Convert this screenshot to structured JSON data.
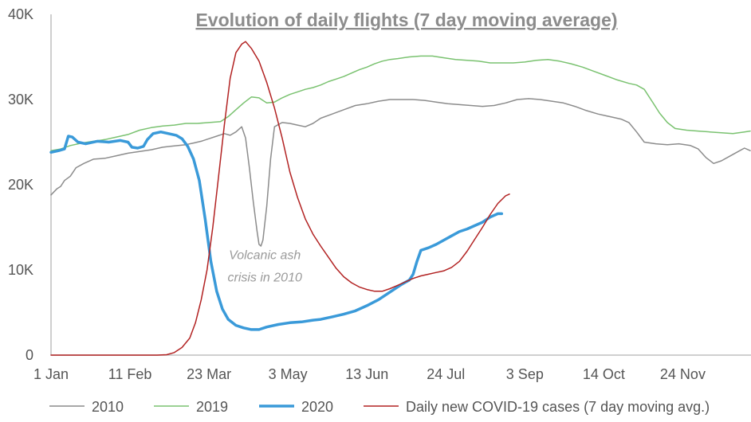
{
  "chart_data": {
    "type": "line",
    "title": "Evolution of daily flights (7 day moving average)",
    "xlabel": "",
    "ylabel": "",
    "ylim": [
      0,
      40000
    ],
    "y_ticks": [
      {
        "value": 0,
        "label": "0"
      },
      {
        "value": 10000,
        "label": "10K"
      },
      {
        "value": 20000,
        "label": "20K"
      },
      {
        "value": 30000,
        "label": "30K"
      },
      {
        "value": 40000,
        "label": "40K"
      }
    ],
    "x_ticks": [
      {
        "day": 0,
        "label": "1 Jan"
      },
      {
        "day": 41,
        "label": "11 Feb"
      },
      {
        "day": 82,
        "label": "23 Mar"
      },
      {
        "day": 123,
        "label": "3 May"
      },
      {
        "day": 164,
        "label": "13 Jun"
      },
      {
        "day": 205,
        "label": "24 Jul"
      },
      {
        "day": 246,
        "label": "3 Sep"
      },
      {
        "day": 287,
        "label": "14 Oct"
      },
      {
        "day": 328,
        "label": "24 Nov"
      }
    ],
    "xlim": [
      0,
      363
    ],
    "grid": false,
    "legend_position": "bottom",
    "series": [
      {
        "name": "2010",
        "color": "#8c8c8c",
        "width": 1.5,
        "points": [
          [
            0,
            18800
          ],
          [
            3,
            19500
          ],
          [
            5,
            19800
          ],
          [
            7,
            20500
          ],
          [
            10,
            21000
          ],
          [
            13,
            22000
          ],
          [
            17,
            22500
          ],
          [
            22,
            23000
          ],
          [
            28,
            23100
          ],
          [
            34,
            23400
          ],
          [
            40,
            23700
          ],
          [
            46,
            23900
          ],
          [
            52,
            24100
          ],
          [
            58,
            24400
          ],
          [
            62,
            24500
          ],
          [
            66,
            24600
          ],
          [
            70,
            24700
          ],
          [
            74,
            24900
          ],
          [
            78,
            25100
          ],
          [
            82,
            25400
          ],
          [
            86,
            25700
          ],
          [
            90,
            26000
          ],
          [
            93,
            25800
          ],
          [
            96,
            26200
          ],
          [
            99,
            26800
          ],
          [
            101,
            25500
          ],
          [
            103,
            22000
          ],
          [
            105,
            18000
          ],
          [
            107,
            14500
          ],
          [
            108,
            13000
          ],
          [
            109,
            12800
          ],
          [
            110,
            13500
          ],
          [
            112,
            17500
          ],
          [
            114,
            23000
          ],
          [
            116,
            26800
          ],
          [
            120,
            27300
          ],
          [
            124,
            27200
          ],
          [
            128,
            27000
          ],
          [
            132,
            26800
          ],
          [
            136,
            27200
          ],
          [
            140,
            27800
          ],
          [
            146,
            28300
          ],
          [
            152,
            28800
          ],
          [
            158,
            29300
          ],
          [
            164,
            29500
          ],
          [
            170,
            29800
          ],
          [
            176,
            30000
          ],
          [
            182,
            30000
          ],
          [
            188,
            30000
          ],
          [
            194,
            29900
          ],
          [
            200,
            29700
          ],
          [
            206,
            29500
          ],
          [
            212,
            29400
          ],
          [
            218,
            29300
          ],
          [
            224,
            29200
          ],
          [
            230,
            29300
          ],
          [
            236,
            29600
          ],
          [
            242,
            30000
          ],
          [
            248,
            30100
          ],
          [
            254,
            30000
          ],
          [
            260,
            29800
          ],
          [
            266,
            29600
          ],
          [
            272,
            29200
          ],
          [
            278,
            28700
          ],
          [
            284,
            28300
          ],
          [
            290,
            28000
          ],
          [
            296,
            27700
          ],
          [
            300,
            27300
          ],
          [
            304,
            26200
          ],
          [
            308,
            25000
          ],
          [
            314,
            24800
          ],
          [
            320,
            24700
          ],
          [
            326,
            24800
          ],
          [
            332,
            24600
          ],
          [
            336,
            24200
          ],
          [
            340,
            23200
          ],
          [
            344,
            22500
          ],
          [
            348,
            22800
          ],
          [
            352,
            23300
          ],
          [
            356,
            23800
          ],
          [
            360,
            24300
          ],
          [
            363,
            24000
          ]
        ]
      },
      {
        "name": "2019",
        "color": "#7ac270",
        "width": 1.5,
        "points": [
          [
            0,
            24000
          ],
          [
            5,
            24200
          ],
          [
            10,
            24600
          ],
          [
            16,
            24900
          ],
          [
            22,
            25100
          ],
          [
            28,
            25300
          ],
          [
            34,
            25600
          ],
          [
            40,
            25900
          ],
          [
            46,
            26400
          ],
          [
            52,
            26700
          ],
          [
            58,
            26900
          ],
          [
            64,
            27000
          ],
          [
            70,
            27200
          ],
          [
            76,
            27200
          ],
          [
            82,
            27300
          ],
          [
            88,
            27400
          ],
          [
            92,
            28000
          ],
          [
            96,
            28800
          ],
          [
            100,
            29600
          ],
          [
            104,
            30300
          ],
          [
            108,
            30200
          ],
          [
            112,
            29600
          ],
          [
            116,
            29700
          ],
          [
            120,
            30200
          ],
          [
            124,
            30600
          ],
          [
            128,
            30900
          ],
          [
            132,
            31200
          ],
          [
            136,
            31400
          ],
          [
            140,
            31700
          ],
          [
            144,
            32100
          ],
          [
            148,
            32400
          ],
          [
            152,
            32700
          ],
          [
            156,
            33100
          ],
          [
            160,
            33500
          ],
          [
            164,
            33800
          ],
          [
            168,
            34200
          ],
          [
            172,
            34500
          ],
          [
            176,
            34700
          ],
          [
            180,
            34800
          ],
          [
            186,
            35000
          ],
          [
            192,
            35100
          ],
          [
            198,
            35100
          ],
          [
            204,
            34900
          ],
          [
            210,
            34700
          ],
          [
            216,
            34600
          ],
          [
            222,
            34500
          ],
          [
            228,
            34300
          ],
          [
            234,
            34300
          ],
          [
            240,
            34300
          ],
          [
            246,
            34400
          ],
          [
            252,
            34600
          ],
          [
            258,
            34700
          ],
          [
            264,
            34500
          ],
          [
            270,
            34200
          ],
          [
            276,
            33800
          ],
          [
            282,
            33300
          ],
          [
            288,
            32800
          ],
          [
            294,
            32300
          ],
          [
            300,
            31900
          ],
          [
            304,
            31700
          ],
          [
            308,
            31200
          ],
          [
            312,
            29800
          ],
          [
            316,
            28400
          ],
          [
            320,
            27300
          ],
          [
            324,
            26600
          ],
          [
            330,
            26400
          ],
          [
            336,
            26300
          ],
          [
            342,
            26200
          ],
          [
            348,
            26100
          ],
          [
            354,
            26000
          ],
          [
            360,
            26200
          ],
          [
            363,
            26300
          ]
        ]
      },
      {
        "name": "2020",
        "color": "#3a9ad9",
        "width": 3.5,
        "points": [
          [
            0,
            23800
          ],
          [
            4,
            24000
          ],
          [
            7,
            24200
          ],
          [
            9,
            25700
          ],
          [
            11,
            25600
          ],
          [
            14,
            25000
          ],
          [
            18,
            24800
          ],
          [
            24,
            25100
          ],
          [
            30,
            25000
          ],
          [
            36,
            25200
          ],
          [
            40,
            25000
          ],
          [
            42,
            24400
          ],
          [
            45,
            24300
          ],
          [
            48,
            24500
          ],
          [
            50,
            25300
          ],
          [
            53,
            26000
          ],
          [
            57,
            26200
          ],
          [
            61,
            26000
          ],
          [
            65,
            25800
          ],
          [
            68,
            25400
          ],
          [
            71,
            24500
          ],
          [
            74,
            23000
          ],
          [
            77,
            20500
          ],
          [
            80,
            16000
          ],
          [
            83,
            11000
          ],
          [
            86,
            7500
          ],
          [
            89,
            5400
          ],
          [
            92,
            4200
          ],
          [
            96,
            3500
          ],
          [
            100,
            3200
          ],
          [
            104,
            3000
          ],
          [
            108,
            3000
          ],
          [
            112,
            3300
          ],
          [
            118,
            3600
          ],
          [
            124,
            3800
          ],
          [
            130,
            3900
          ],
          [
            136,
            4100
          ],
          [
            140,
            4200
          ],
          [
            146,
            4500
          ],
          [
            152,
            4800
          ],
          [
            158,
            5200
          ],
          [
            164,
            5800
          ],
          [
            170,
            6500
          ],
          [
            176,
            7400
          ],
          [
            182,
            8300
          ],
          [
            186,
            8800
          ],
          [
            188,
            9500
          ],
          [
            190,
            11000
          ],
          [
            192,
            12300
          ],
          [
            196,
            12600
          ],
          [
            200,
            13000
          ],
          [
            204,
            13500
          ],
          [
            208,
            14000
          ],
          [
            212,
            14500
          ],
          [
            216,
            14800
          ],
          [
            220,
            15200
          ],
          [
            224,
            15600
          ],
          [
            228,
            16200
          ],
          [
            232,
            16600
          ],
          [
            234,
            16600
          ]
        ]
      },
      {
        "name": "Daily new COVID-19 cases (7 day moving avg.)",
        "color": "#b22222",
        "width": 1.5,
        "points": [
          [
            0,
            0
          ],
          [
            40,
            0
          ],
          [
            55,
            0
          ],
          [
            60,
            50
          ],
          [
            64,
            300
          ],
          [
            68,
            900
          ],
          [
            72,
            2000
          ],
          [
            75,
            3800
          ],
          [
            78,
            6500
          ],
          [
            81,
            10000
          ],
          [
            84,
            15000
          ],
          [
            87,
            21000
          ],
          [
            90,
            27000
          ],
          [
            93,
            32500
          ],
          [
            96,
            35500
          ],
          [
            99,
            36500
          ],
          [
            101,
            36800
          ],
          [
            104,
            36000
          ],
          [
            108,
            34500
          ],
          [
            112,
            32000
          ],
          [
            116,
            29000
          ],
          [
            120,
            25500
          ],
          [
            124,
            21500
          ],
          [
            128,
            18500
          ],
          [
            132,
            16000
          ],
          [
            136,
            14200
          ],
          [
            140,
            12800
          ],
          [
            144,
            11500
          ],
          [
            148,
            10200
          ],
          [
            152,
            9200
          ],
          [
            156,
            8500
          ],
          [
            160,
            8000
          ],
          [
            164,
            7700
          ],
          [
            168,
            7500
          ],
          [
            172,
            7500
          ],
          [
            176,
            7800
          ],
          [
            180,
            8200
          ],
          [
            184,
            8600
          ],
          [
            188,
            9000
          ],
          [
            192,
            9300
          ],
          [
            196,
            9500
          ],
          [
            200,
            9700
          ],
          [
            204,
            9900
          ],
          [
            208,
            10300
          ],
          [
            212,
            11000
          ],
          [
            216,
            12200
          ],
          [
            220,
            13600
          ],
          [
            224,
            15000
          ],
          [
            228,
            16500
          ],
          [
            232,
            17800
          ],
          [
            236,
            18700
          ],
          [
            238,
            18900
          ]
        ]
      }
    ],
    "annotation": {
      "lines": [
        "Volcanic ash",
        "crisis in 2010"
      ],
      "day": 111,
      "value": 11000
    }
  }
}
